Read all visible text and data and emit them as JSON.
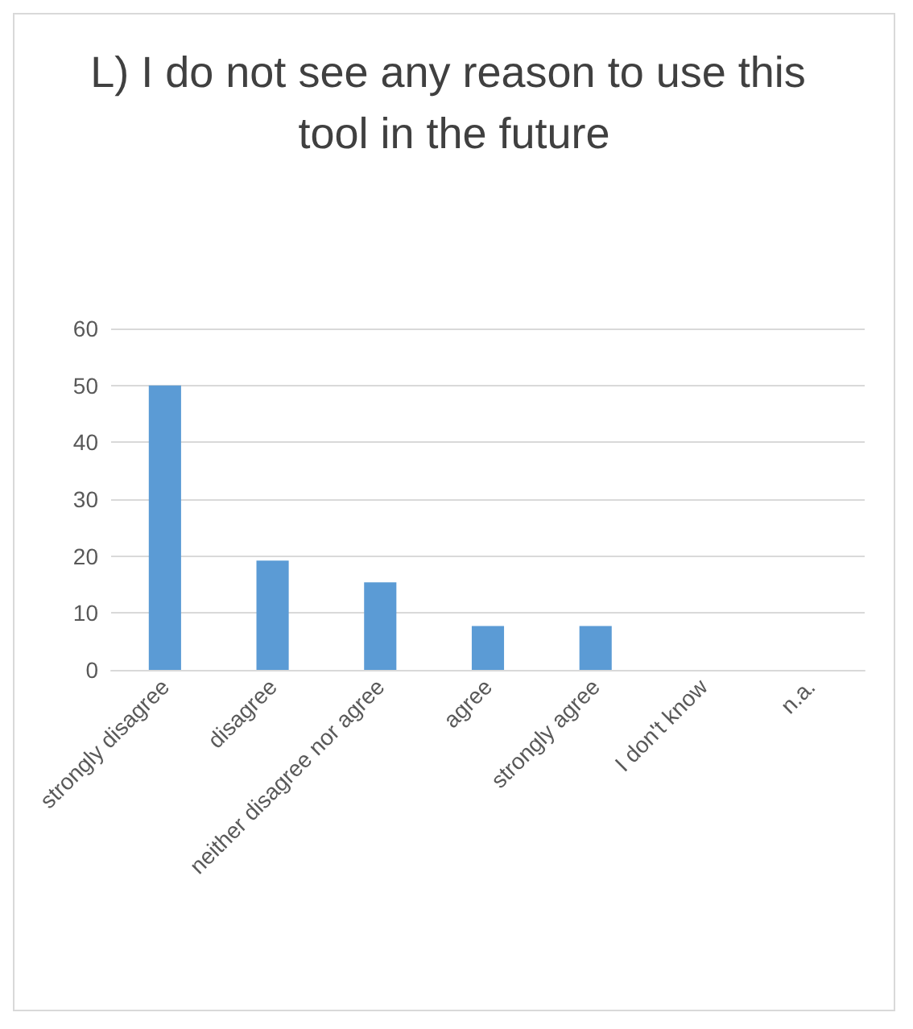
{
  "chart_data": {
    "type": "bar",
    "title": "L) I do not see any reason to use this tool in the future",
    "categories": [
      "strongly disagree",
      "disagree",
      "neither disagree nor agree",
      "agree",
      "strongly agree",
      "I don't know",
      "n.a."
    ],
    "values": [
      50,
      19.2,
      15.4,
      7.7,
      7.7,
      0,
      0
    ],
    "color": "#5b9bd5",
    "ylim": [
      0,
      60
    ],
    "yticks": [
      0,
      10,
      20,
      30,
      40,
      50,
      60
    ],
    "grid": "y"
  }
}
